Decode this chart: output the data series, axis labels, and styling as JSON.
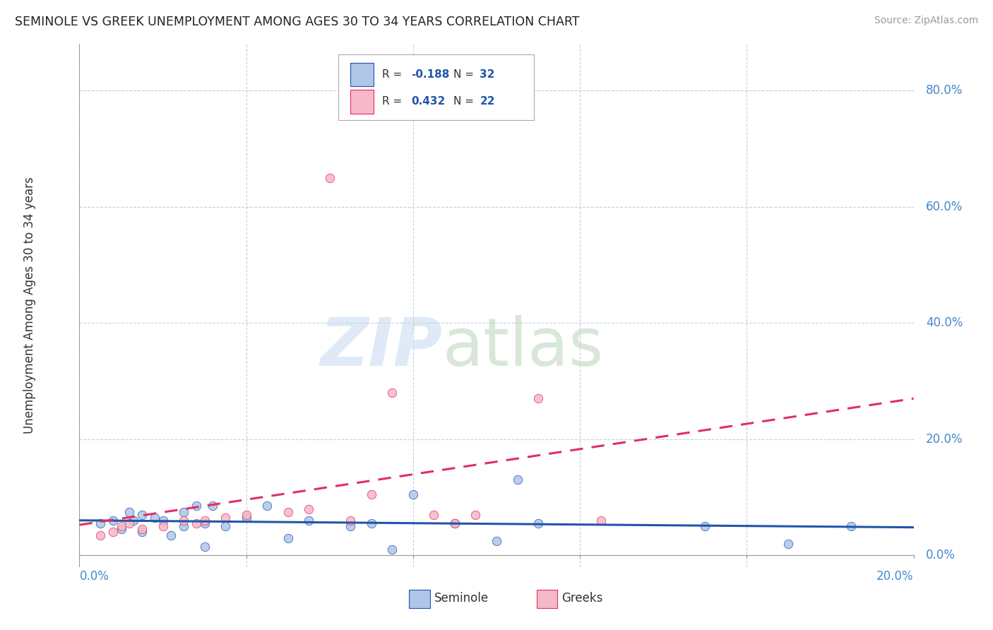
{
  "title": "SEMINOLE VS GREEK UNEMPLOYMENT AMONG AGES 30 TO 34 YEARS CORRELATION CHART",
  "source": "Source: ZipAtlas.com",
  "ylabel": "Unemployment Among Ages 30 to 34 years",
  "ytick_labels": [
    "0.0%",
    "20.0%",
    "40.0%",
    "60.0%",
    "80.0%"
  ],
  "ytick_values": [
    0.0,
    0.2,
    0.4,
    0.6,
    0.8
  ],
  "xlim": [
    0.0,
    0.2
  ],
  "ylim": [
    -0.02,
    0.88
  ],
  "seminole_R": -0.188,
  "seminole_N": 32,
  "greeks_R": 0.432,
  "greeks_N": 22,
  "seminole_color": "#aec6e8",
  "seminole_line_color": "#2255aa",
  "greeks_color": "#f5b8c8",
  "greeks_line_color": "#e03060",
  "background_color": "#ffffff",
  "grid_color": "#c0cfe0",
  "seminole_x": [
    0.005,
    0.008,
    0.01,
    0.012,
    0.013,
    0.015,
    0.015,
    0.018,
    0.02,
    0.022,
    0.025,
    0.025,
    0.028,
    0.03,
    0.03,
    0.032,
    0.035,
    0.04,
    0.045,
    0.05,
    0.055,
    0.065,
    0.07,
    0.075,
    0.08,
    0.09,
    0.1,
    0.105,
    0.11,
    0.15,
    0.17,
    0.185
  ],
  "seminole_y": [
    0.055,
    0.06,
    0.045,
    0.075,
    0.06,
    0.07,
    0.04,
    0.065,
    0.06,
    0.035,
    0.075,
    0.05,
    0.085,
    0.055,
    0.015,
    0.085,
    0.05,
    0.065,
    0.085,
    0.03,
    0.06,
    0.05,
    0.055,
    0.01,
    0.105,
    0.055,
    0.025,
    0.13,
    0.055,
    0.05,
    0.02,
    0.05
  ],
  "greeks_x": [
    0.005,
    0.008,
    0.01,
    0.012,
    0.015,
    0.02,
    0.025,
    0.028,
    0.03,
    0.035,
    0.04,
    0.05,
    0.055,
    0.06,
    0.065,
    0.07,
    0.075,
    0.085,
    0.09,
    0.095,
    0.11,
    0.125
  ],
  "greeks_y": [
    0.035,
    0.04,
    0.05,
    0.055,
    0.045,
    0.05,
    0.06,
    0.055,
    0.06,
    0.065,
    0.07,
    0.075,
    0.08,
    0.65,
    0.06,
    0.105,
    0.28,
    0.07,
    0.055,
    0.07,
    0.27,
    0.06
  ],
  "trend_x_start": 0.0,
  "trend_x_end": 0.2
}
